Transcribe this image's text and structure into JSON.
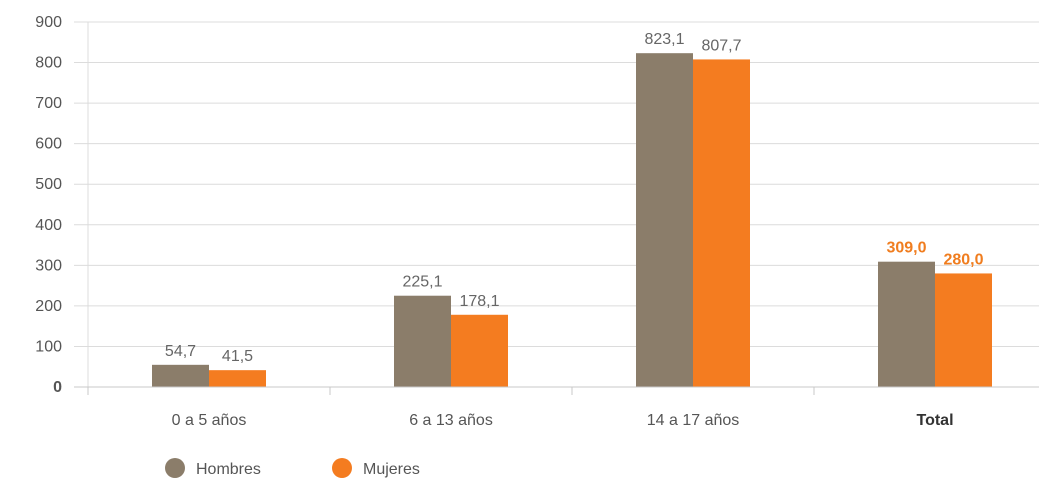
{
  "chart_data": {
    "type": "bar",
    "categories": [
      "0 a 5 años",
      "6 a 13 años",
      "14 a 17 años",
      "Total"
    ],
    "highlight_category": "Total",
    "series": [
      {
        "name": "Hombres",
        "color": "#8b7d6a",
        "values": [
          54.7,
          225.1,
          823.1,
          309.0
        ],
        "labels": [
          "54,7",
          "225,1",
          "823,1",
          "309,0"
        ]
      },
      {
        "name": "Mujeres",
        "color": "#f47c20",
        "values": [
          41.5,
          178.1,
          807.7,
          280.0
        ],
        "labels": [
          "41,5",
          "178,1",
          "807,7",
          "280,0"
        ]
      }
    ],
    "yticks": [
      "0",
      "100",
      "200",
      "300",
      "400",
      "500",
      "600",
      "700",
      "800",
      "900"
    ],
    "ylim": [
      0,
      900
    ],
    "grid": true,
    "legend_position": "bottom-left",
    "highlight_label_color": "#f07d1f"
  }
}
